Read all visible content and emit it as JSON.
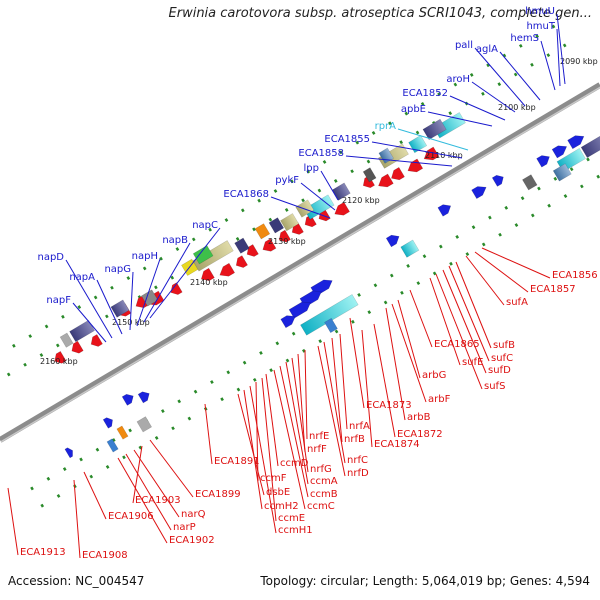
{
  "title": "Erwinia carotovora subsp. atroseptica SCRI1043, complete gen...",
  "footer": {
    "accession": "Accession: NC_004547",
    "summary": "Topology: circular; Length: 5,064,019 bp; Genes: 4,594"
  },
  "ruler": [
    "2090 kbp",
    "2100 kbp",
    "2110 kbp",
    "2120 kbp",
    "2130 kbp",
    "2140 kbp",
    "2150 kbp",
    "2160 kbp"
  ],
  "colors": {
    "forward_label": "#1a1acc",
    "reverse_label": "#dd1111",
    "rna_label": "#33bbdd",
    "backbone": "#8c8c8c"
  },
  "outer_labels": [
    "hmuU",
    "hmuT",
    "hemS",
    "aglA",
    "pall",
    "aroH",
    "ECA1852",
    "apbE",
    "rprA",
    "ECA1855",
    "ECA1858",
    "lpp",
    "pykF",
    "ECA1868",
    "napC",
    "napB",
    "napH",
    "napG",
    "napA",
    "napD",
    "napF"
  ],
  "inner_labels": [
    "ECA1856",
    "ECA1857",
    "sufA",
    "sufB",
    "sufC",
    "sufD",
    "sufS",
    "sufE",
    "ECA1865",
    "arbG",
    "arbF",
    "arbB",
    "ECA1873",
    "ECA1872",
    "ECA1874",
    "nrfA",
    "nrfB",
    "nrfC",
    "nrfD",
    "nrfE",
    "nrfF",
    "nrfG",
    "ccmA",
    "ccmB",
    "ccmC",
    "ccmD",
    "ccmE",
    "ccmF",
    "ccmH1",
    "ccmH2",
    "dsbE",
    "ECA1891",
    "ECA1899",
    "ECA1903",
    "narQ",
    "narP",
    "ECA1902",
    "ECA1906",
    "ECA1908",
    "ECA1913"
  ]
}
